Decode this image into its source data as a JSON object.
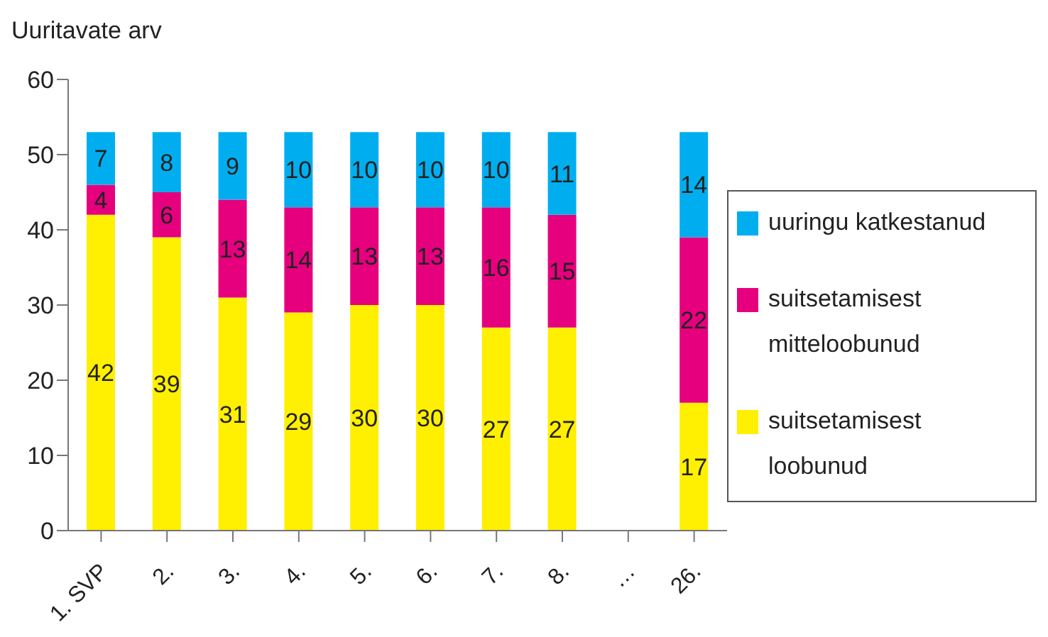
{
  "chart_data": {
    "type": "bar",
    "ylabel": "Uuritavate arv",
    "stacked": true,
    "categories": [
      "1. SVP",
      "2.",
      "3.",
      "4.",
      "5.",
      "6.",
      "7.",
      "8.",
      "…",
      "26."
    ],
    "series": [
      {
        "name": "suitsetamisest loobunud",
        "color": "#ffef00",
        "values": [
          42,
          39,
          31,
          29,
          30,
          30,
          27,
          27,
          null,
          17
        ]
      },
      {
        "name": "suitsetamisest mitteloobunud",
        "color": "#e6007e",
        "values": [
          4,
          6,
          13,
          14,
          13,
          13,
          16,
          15,
          null,
          22
        ]
      },
      {
        "name": "uuringu katkestanud",
        "color": "#00aeef",
        "values": [
          7,
          8,
          9,
          10,
          10,
          10,
          10,
          11,
          null,
          14
        ]
      }
    ],
    "ylim": [
      0,
      60
    ],
    "yticks": [
      0,
      10,
      20,
      30,
      40,
      50,
      60
    ],
    "grid": false,
    "legend": "right",
    "data_labels": true
  }
}
